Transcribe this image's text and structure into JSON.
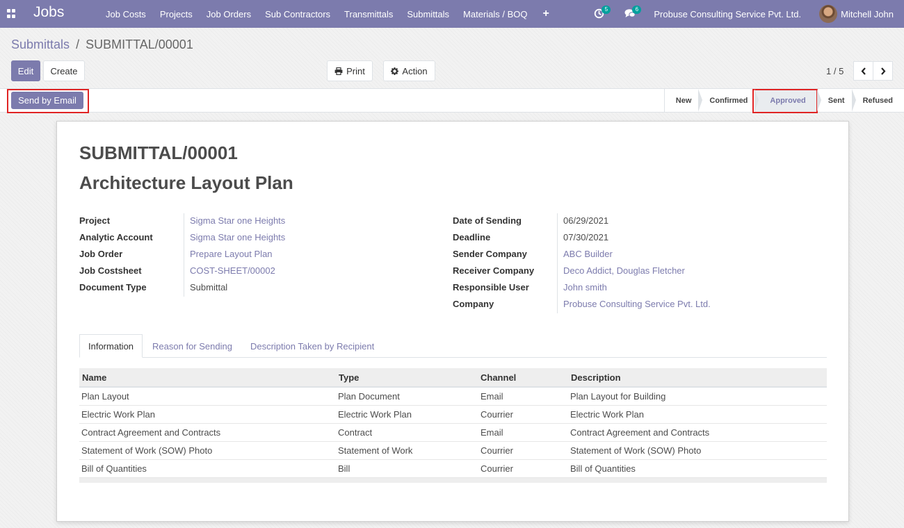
{
  "app": {
    "title": "Jobs",
    "menu": [
      "Job Costs",
      "Projects",
      "Job Orders",
      "Sub Contractors",
      "Transmittals",
      "Submittals",
      "Materials / BOQ"
    ],
    "add_symbol": "+",
    "activity_count": "5",
    "message_count": "6",
    "company": "Probuse Consulting Service Pvt. Ltd.",
    "user": "Mitchell John"
  },
  "breadcrumb": {
    "parent": "Submittals",
    "separator": "/",
    "current": "SUBMITTAL/00001"
  },
  "toolbar": {
    "edit": "Edit",
    "create": "Create",
    "print": "Print",
    "action": "Action",
    "pager": "1 / 5"
  },
  "statusbar": {
    "send_email": "Send by Email",
    "steps": [
      "New",
      "Confirmed",
      "Approved",
      "Sent",
      "Refused"
    ],
    "active_step": "Approved"
  },
  "record": {
    "reference": "SUBMITTAL/00001",
    "title": "Architecture Layout Plan",
    "left_fields": [
      {
        "label": "Project",
        "value": "Sigma Star one Heights"
      },
      {
        "label": "Analytic Account",
        "value": "Sigma Star one Heights"
      },
      {
        "label": "Job Order",
        "value": "Prepare Layout Plan"
      },
      {
        "label": "Job Costsheet",
        "value": "COST-SHEET/00002"
      },
      {
        "label": "Document Type",
        "value": "Submittal"
      }
    ],
    "right_fields": [
      {
        "label": "Date of Sending",
        "value": "06/29/2021"
      },
      {
        "label": "Deadline",
        "value": "07/30/2021"
      },
      {
        "label": "Sender Company",
        "value": "ABC Builder"
      },
      {
        "label": "Receiver Company",
        "value": "Deco Addict, Douglas Fletcher"
      },
      {
        "label": "Responsible User",
        "value": "John smith"
      },
      {
        "label": "Company",
        "value": "Probuse Consulting Service Pvt. Ltd."
      }
    ]
  },
  "tabs": [
    "Information",
    "Reason for Sending",
    "Description Taken by Recipient"
  ],
  "table": {
    "headers": [
      "Name",
      "Type",
      "Channel",
      "Description"
    ],
    "rows": [
      [
        "Plan Layout",
        "Plan Document",
        "Email",
        "Plan Layout for Building"
      ],
      [
        "Electric Work Plan",
        "Electric Work Plan",
        "Courrier",
        "Electric Work Plan"
      ],
      [
        "Contract Agreement and Contracts",
        "Contract",
        "Email",
        "Contract Agreement and Contracts"
      ],
      [
        "Statement of Work (SOW) Photo",
        "Statement of Work",
        "Courrier",
        "Statement of Work (SOW) Photo"
      ],
      [
        "Bill of Quantities",
        "Bill",
        "Courrier",
        "Bill of Quantities"
      ]
    ]
  },
  "colors": {
    "brand": "#7c7bad",
    "highlight": "#e02424",
    "badge": "#00a09d"
  },
  "icons": [
    "apps-icon",
    "activity-clock-icon",
    "chat-icon",
    "print-icon",
    "gear-icon",
    "chevron-left-icon",
    "chevron-right-icon"
  ]
}
